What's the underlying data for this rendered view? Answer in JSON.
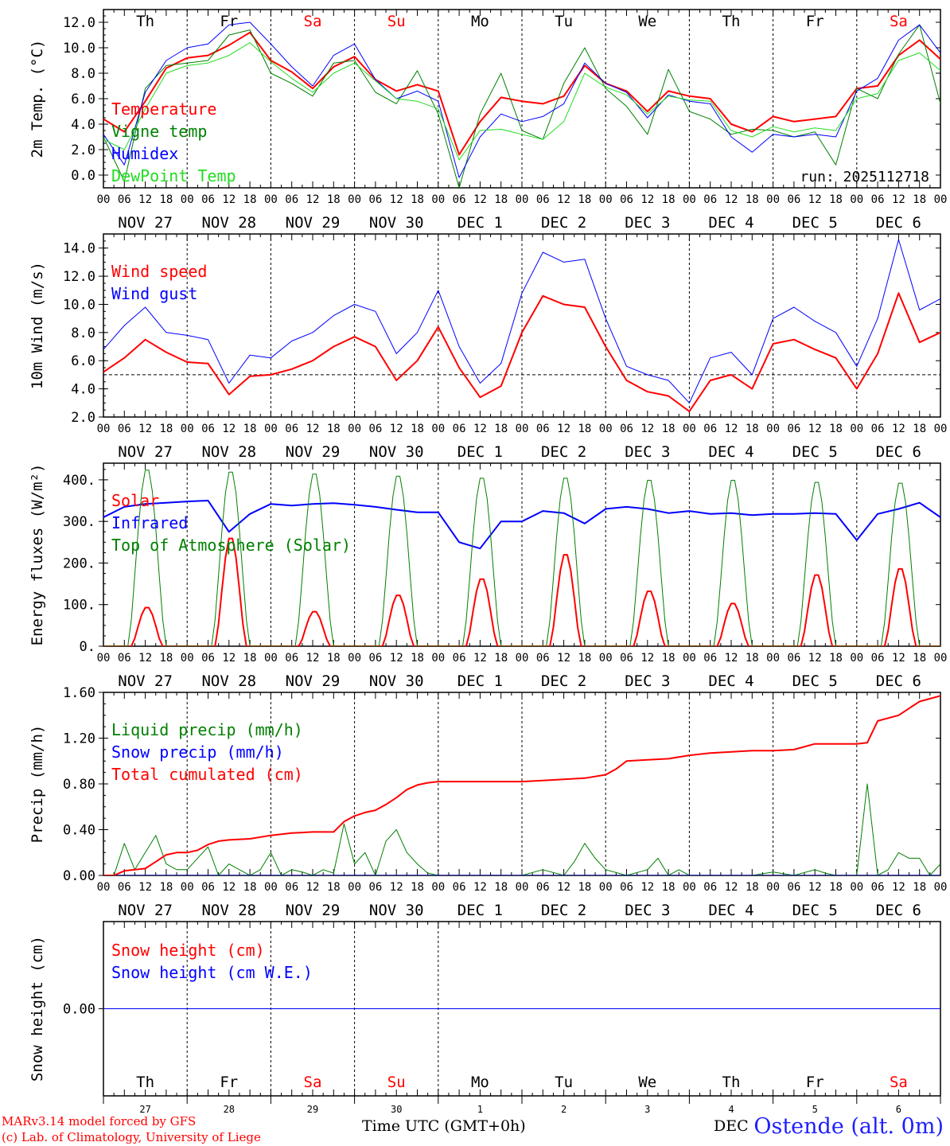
{
  "colors": {
    "red": "#ff0000",
    "blue": "#0000ff",
    "green": "#008000",
    "lightgreen": "#22dd22",
    "grid": "#000000"
  },
  "days": [
    "Th",
    "Fr",
    "Sa",
    "Su",
    "Mo",
    "Tu",
    "We",
    "Th",
    "Fr",
    "Sa"
  ],
  "weekend_days": [
    2,
    3,
    9
  ],
  "dates": [
    "NOV 27",
    "NOV 28",
    "NOV 29",
    "NOV 30",
    "DEC  1",
    "DEC  2",
    "DEC  3",
    "DEC  4",
    "DEC  5",
    "DEC  6"
  ],
  "hour_ticks": [
    "00",
    "06",
    "12",
    "18"
  ],
  "last_hour_tick": "00",
  "bottom_day_numbers": [
    "27",
    "28",
    "29",
    "30",
    "1",
    "2",
    "3",
    "4",
    "5",
    "6"
  ],
  "footer": {
    "credit1": "MARv3.14 model forced by GFS",
    "credit2": "(c) Lab. of Climatology, University of Liege",
    "axis_label": "Time UTC (GMT+0h)",
    "month_label": "DEC",
    "station": "Ostende (alt. 0m)"
  },
  "chart_data": [
    {
      "id": "temp",
      "type": "line",
      "ylabel": "2m Temp. (°C)",
      "ylim": [
        -1.0,
        13.0
      ],
      "yticks": [
        0,
        2,
        4,
        6,
        8,
        10,
        12
      ],
      "ytick_labels": [
        "0.0",
        "2.0",
        "4.0",
        "6.0",
        "8.0",
        "10.0",
        "12.0"
      ],
      "run": "run: 2025112718",
      "series": [
        {
          "name": "Temperature",
          "color": "red",
          "width": 2,
          "x": [
            0,
            6,
            12,
            18,
            24,
            30,
            36,
            42,
            48,
            54,
            60,
            66,
            72,
            78,
            84,
            90,
            96,
            102,
            108,
            114,
            120,
            126,
            132,
            138,
            144,
            150,
            156,
            162,
            168,
            174,
            180,
            186,
            192,
            198,
            204,
            210,
            216,
            222,
            228,
            234,
            240
          ],
          "values": [
            4.4,
            3.4,
            5.8,
            8.4,
            9.2,
            9.4,
            10.2,
            11.2,
            9.0,
            8.1,
            6.8,
            8.5,
            9.3,
            7.5,
            6.6,
            7.1,
            6.6,
            1.6,
            4.2,
            6.1,
            5.8,
            5.6,
            6.2,
            8.6,
            7.2,
            6.6,
            5.0,
            6.6,
            6.2,
            6.0,
            4.0,
            3.4,
            4.6,
            4.2,
            4.4,
            4.6,
            6.8,
            7.0,
            9.4,
            10.6,
            9.1
          ]
        },
        {
          "name": "Vigne temp",
          "color": "green",
          "width": 1,
          "x": [
            0,
            6,
            12,
            18,
            24,
            30,
            36,
            42,
            48,
            54,
            60,
            66,
            72,
            78,
            84,
            90,
            96,
            102,
            108,
            114,
            120,
            126,
            132,
            138,
            144,
            150,
            156,
            162,
            168,
            174,
            180,
            186,
            192,
            198,
            204,
            210,
            216,
            222,
            228,
            234,
            240
          ],
          "values": [
            3.0,
            -0.5,
            6.8,
            8.6,
            8.8,
            9.0,
            11.0,
            11.4,
            8.0,
            7.2,
            6.2,
            8.8,
            9.0,
            6.5,
            5.6,
            8.2,
            4.8,
            -1.0,
            4.8,
            8.0,
            3.5,
            2.8,
            7.2,
            10.0,
            6.8,
            5.4,
            3.2,
            8.3,
            5.0,
            4.4,
            3.2,
            3.6,
            3.5,
            3.0,
            3.4,
            0.8,
            6.8,
            6.0,
            9.5,
            11.8,
            5.6
          ]
        },
        {
          "name": "Humidex",
          "color": "blue",
          "width": 1,
          "x": [
            0,
            6,
            12,
            18,
            24,
            30,
            36,
            42,
            48,
            54,
            60,
            66,
            72,
            78,
            84,
            90,
            96,
            102,
            108,
            114,
            120,
            126,
            132,
            138,
            144,
            150,
            156,
            162,
            168,
            174,
            180,
            186,
            192,
            198,
            204,
            210,
            216,
            222,
            228,
            234,
            240
          ],
          "values": [
            3.2,
            0.8,
            6.5,
            9.0,
            10.0,
            10.3,
            11.8,
            12.0,
            10.3,
            8.5,
            7.0,
            9.4,
            10.3,
            7.5,
            6.0,
            6.6,
            5.8,
            -0.2,
            3.0,
            4.8,
            4.2,
            4.6,
            5.6,
            8.8,
            7.2,
            6.5,
            4.5,
            6.3,
            5.8,
            5.6,
            3.0,
            1.8,
            3.2,
            3.0,
            3.2,
            3.0,
            6.6,
            7.6,
            10.6,
            11.8,
            9.6
          ]
        },
        {
          "name": "DewPoint Temp",
          "color": "lightgreen",
          "width": 1,
          "x": [
            0,
            6,
            12,
            18,
            24,
            30,
            36,
            42,
            48,
            54,
            60,
            66,
            72,
            78,
            84,
            90,
            96,
            102,
            108,
            114,
            120,
            126,
            132,
            138,
            144,
            150,
            156,
            162,
            168,
            174,
            180,
            186,
            192,
            198,
            204,
            210,
            216,
            222,
            228,
            234,
            240
          ],
          "values": [
            2.8,
            2.0,
            5.2,
            8.0,
            8.6,
            8.8,
            9.4,
            10.4,
            8.9,
            7.6,
            6.5,
            8.0,
            8.8,
            7.4,
            6.0,
            5.8,
            5.2,
            1.2,
            3.5,
            3.6,
            3.2,
            2.8,
            4.2,
            8.0,
            6.9,
            6.3,
            4.8,
            6.2,
            5.9,
            5.8,
            3.5,
            3.0,
            3.8,
            3.4,
            3.7,
            3.5,
            6.0,
            6.4,
            9.0,
            9.6,
            8.2
          ]
        }
      ]
    },
    {
      "id": "wind",
      "type": "line",
      "ylabel": "10m Wind (m/s)",
      "ylim": [
        2.0,
        15.0
      ],
      "yticks": [
        2,
        4,
        6,
        8,
        10,
        12,
        14
      ],
      "ytick_labels": [
        "2.0",
        "4.0",
        "6.0",
        "8.0",
        "10.0",
        "12.0",
        "14.0"
      ],
      "ref_line": 5.0,
      "series": [
        {
          "name": "Wind speed",
          "color": "red",
          "width": 2,
          "x": [
            0,
            6,
            12,
            18,
            24,
            30,
            36,
            42,
            48,
            54,
            60,
            66,
            72,
            78,
            84,
            90,
            96,
            102,
            108,
            114,
            120,
            126,
            132,
            138,
            144,
            150,
            156,
            162,
            168,
            174,
            180,
            186,
            192,
            198,
            204,
            210,
            216,
            222,
            228,
            234,
            240
          ],
          "values": [
            5.2,
            6.2,
            7.5,
            6.6,
            5.9,
            5.8,
            3.6,
            4.9,
            5.0,
            5.4,
            6.0,
            7.0,
            7.7,
            7.0,
            4.6,
            6.0,
            8.4,
            5.5,
            3.4,
            4.2,
            8.0,
            10.6,
            10.0,
            9.8,
            7.0,
            4.6,
            3.8,
            3.5,
            2.4,
            4.6,
            5.0,
            4.0,
            7.2,
            7.5,
            6.8,
            6.2,
            4.0,
            6.5,
            10.8,
            7.3,
            8.0
          ]
        },
        {
          "name": "Wind gust",
          "color": "blue",
          "width": 1,
          "x": [
            0,
            6,
            12,
            18,
            24,
            30,
            36,
            42,
            48,
            54,
            60,
            66,
            72,
            78,
            84,
            90,
            96,
            102,
            108,
            114,
            120,
            126,
            132,
            138,
            144,
            150,
            156,
            162,
            168,
            174,
            180,
            186,
            192,
            198,
            204,
            210,
            216,
            222,
            228,
            234,
            240
          ],
          "values": [
            6.8,
            8.5,
            9.8,
            8.0,
            7.8,
            7.5,
            4.4,
            6.4,
            6.2,
            7.4,
            8.0,
            9.2,
            10.0,
            9.5,
            6.5,
            8.0,
            11.0,
            7.0,
            4.4,
            5.8,
            10.8,
            13.7,
            13.0,
            13.2,
            9.0,
            5.6,
            5.0,
            4.6,
            3.0,
            6.2,
            6.6,
            5.0,
            9.0,
            9.8,
            8.8,
            8.0,
            5.6,
            9.0,
            14.6,
            9.6,
            10.4
          ]
        }
      ]
    },
    {
      "id": "energy",
      "type": "line",
      "ylabel": "Energy fluxes (W/m²)",
      "ylim": [
        0,
        440
      ],
      "yticks": [
        0,
        100,
        200,
        300,
        400
      ],
      "ytick_labels": [
        "0.",
        "100.",
        "200.",
        "300.",
        "400."
      ],
      "series": [
        {
          "name": "Solar",
          "color": "red",
          "width": 2,
          "peaks": [
            95,
            265,
            85,
            125,
            165,
            225,
            135,
            105,
            175,
            190
          ],
          "peak_hour": 12.5,
          "halfwidth": 4.5
        },
        {
          "name": "Infrared",
          "color": "blue",
          "width": 2,
          "x": [
            0,
            6,
            12,
            18,
            24,
            30,
            36,
            42,
            48,
            54,
            60,
            66,
            72,
            78,
            84,
            90,
            96,
            102,
            108,
            114,
            120,
            126,
            132,
            138,
            144,
            150,
            156,
            162,
            168,
            174,
            180,
            186,
            192,
            198,
            204,
            210,
            216,
            222,
            228,
            234,
            240
          ],
          "values": [
            310,
            335,
            342,
            345,
            348,
            350,
            275,
            318,
            342,
            338,
            342,
            344,
            340,
            335,
            328,
            322,
            322,
            250,
            235,
            300,
            300,
            325,
            320,
            295,
            330,
            335,
            330,
            320,
            325,
            318,
            320,
            315,
            318,
            318,
            320,
            318,
            255,
            318,
            330,
            345,
            310
          ]
        },
        {
          "name": "Top of Atmosphere (Solar)",
          "color": "green",
          "width": 1,
          "peaks": [
            430,
            425,
            420,
            415,
            410,
            410,
            405,
            405,
            400,
            398
          ],
          "peak_hour": 12.5,
          "halfwidth": 5.5
        }
      ]
    },
    {
      "id": "precip",
      "type": "line",
      "ylabel": "Precip (mm/h)",
      "ylim": [
        0,
        1.6
      ],
      "yticks": [
        0,
        0.4,
        0.8,
        1.2,
        1.6
      ],
      "ytick_labels": [
        "0.00",
        "0.40",
        "0.80",
        "1.20",
        "1.60"
      ],
      "series": [
        {
          "name": "Liquid precip (mm/h)",
          "color": "green",
          "width": 1,
          "x": [
            0,
            3,
            6,
            9,
            12,
            15,
            18,
            21,
            24,
            27,
            30,
            33,
            36,
            39,
            42,
            45,
            48,
            51,
            54,
            57,
            60,
            63,
            66,
            69,
            72,
            75,
            78,
            81,
            84,
            87,
            90,
            93,
            96,
            99,
            102,
            105,
            108,
            114,
            120,
            126,
            132,
            135,
            138,
            141,
            144,
            150,
            156,
            159,
            162,
            165,
            168,
            174,
            180,
            186,
            192,
            198,
            204,
            207,
            210,
            213,
            216,
            219,
            222,
            225,
            228,
            231,
            234,
            237,
            240
          ],
          "values": [
            0,
            0,
            0.28,
            0.05,
            0.2,
            0.35,
            0.1,
            0.05,
            0.05,
            0.15,
            0.25,
            0,
            0.1,
            0.05,
            0,
            0.05,
            0.2,
            0,
            0.05,
            0.03,
            0,
            0.05,
            0.02,
            0.45,
            0.1,
            0.2,
            0,
            0.3,
            0.4,
            0.2,
            0.1,
            0.02,
            0,
            0,
            0,
            0,
            0,
            0,
            0,
            0.05,
            0,
            0.12,
            0.28,
            0.15,
            0.05,
            0,
            0.05,
            0.15,
            0,
            0.05,
            0,
            0,
            0,
            0,
            0.03,
            0,
            0.05,
            0.02,
            0,
            0,
            0,
            0.8,
            0,
            0.05,
            0.2,
            0.15,
            0.15,
            0,
            0.1
          ]
        },
        {
          "name": "Snow precip (mm/h)",
          "color": "blue",
          "width": 1,
          "x": [
            0,
            240
          ],
          "values": [
            0,
            0
          ]
        },
        {
          "name": "Total cumulated (cm)",
          "color": "red",
          "width": 2,
          "x": [
            0,
            3,
            6,
            9,
            12,
            15,
            18,
            21,
            24,
            27,
            30,
            33,
            36,
            42,
            48,
            54,
            60,
            63,
            66,
            69,
            72,
            75,
            78,
            81,
            84,
            87,
            90,
            93,
            96,
            102,
            108,
            114,
            120,
            126,
            132,
            138,
            144,
            147,
            150,
            156,
            162,
            168,
            174,
            180,
            186,
            192,
            198,
            204,
            210,
            216,
            219,
            222,
            228,
            234,
            240
          ],
          "values": [
            0,
            0,
            0.04,
            0.05,
            0.06,
            0.12,
            0.18,
            0.2,
            0.2,
            0.22,
            0.27,
            0.3,
            0.31,
            0.32,
            0.35,
            0.37,
            0.38,
            0.38,
            0.38,
            0.47,
            0.52,
            0.55,
            0.57,
            0.62,
            0.68,
            0.75,
            0.79,
            0.81,
            0.82,
            0.82,
            0.82,
            0.82,
            0.82,
            0.83,
            0.84,
            0.85,
            0.88,
            0.93,
            1.0,
            1.01,
            1.02,
            1.05,
            1.07,
            1.08,
            1.09,
            1.09,
            1.1,
            1.15,
            1.15,
            1.15,
            1.16,
            1.35,
            1.4,
            1.52,
            1.57
          ]
        }
      ]
    },
    {
      "id": "snow",
      "type": "line",
      "ylabel": "Snow height (cm)",
      "ylim": [
        -1,
        1
      ],
      "yticks": [
        0
      ],
      "ytick_labels": [
        "0.00"
      ],
      "series": [
        {
          "name": "Snow height (cm)",
          "color": "red",
          "width": 1,
          "x": [
            0,
            240
          ],
          "values": [
            0,
            0
          ]
        },
        {
          "name": "Snow height (cm W.E.)",
          "color": "blue",
          "width": 1,
          "x": [
            0,
            240
          ],
          "values": [
            0,
            0
          ]
        }
      ]
    }
  ]
}
